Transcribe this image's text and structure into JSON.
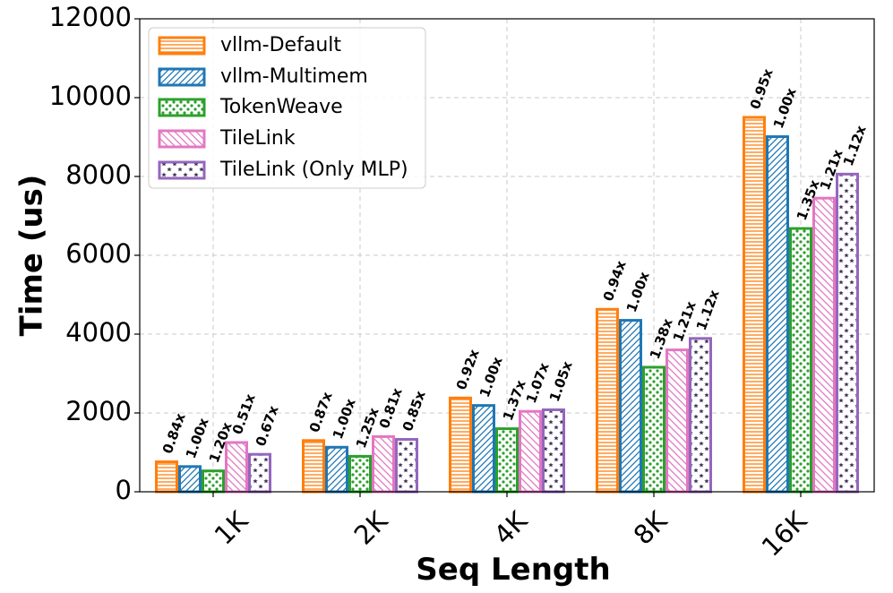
{
  "chart_data": {
    "type": "bar",
    "title": "",
    "xlabel": "Seq Length",
    "ylabel": "Time (us)",
    "ylim": [
      0,
      12000
    ],
    "yticks": [
      "0",
      "2000",
      "4000",
      "6000",
      "8000",
      "10000",
      "12000"
    ],
    "categories": [
      "1K",
      "2K",
      "4K",
      "8K",
      "16K"
    ],
    "grid": true,
    "legend_position": "top-left",
    "series": [
      {
        "name": "vllm-Default",
        "color": "#ff7f0e",
        "pattern": "horizontal-lines",
        "values": [
          760,
          1300,
          2380,
          4630,
          9500
        ],
        "labels": [
          "0.84x",
          "0.87x",
          "0.92x",
          "0.94x",
          "0.95x"
        ]
      },
      {
        "name": "vllm-Multimem",
        "color": "#1f77b4",
        "pattern": "diagonal-lines",
        "values": [
          640,
          1130,
          2190,
          4350,
          9010
        ],
        "labels": [
          "1.00x",
          "1.00x",
          "1.00x",
          "1.00x",
          "1.00x"
        ]
      },
      {
        "name": "TokenWeave",
        "color": "#2ca02c",
        "pattern": "dots",
        "values": [
          530,
          900,
          1600,
          3160,
          6680
        ],
        "labels": [
          "1.20x",
          "1.25x",
          "1.37x",
          "1.38x",
          "1.35x"
        ]
      },
      {
        "name": "TileLink",
        "color": "#e377c2",
        "pattern": "back-diagonal-lines",
        "values": [
          1250,
          1400,
          2040,
          3600,
          7450
        ],
        "labels": [
          "0.51x",
          "0.81x",
          "1.07x",
          "1.21x",
          "1.21x"
        ]
      },
      {
        "name": "TileLink (Only MLP)",
        "color": "#9467bd",
        "pattern": "stars",
        "values": [
          950,
          1330,
          2080,
          3890,
          8060
        ],
        "labels": [
          "0.67x",
          "0.85x",
          "1.05x",
          "1.12x",
          "1.12x"
        ]
      }
    ]
  }
}
